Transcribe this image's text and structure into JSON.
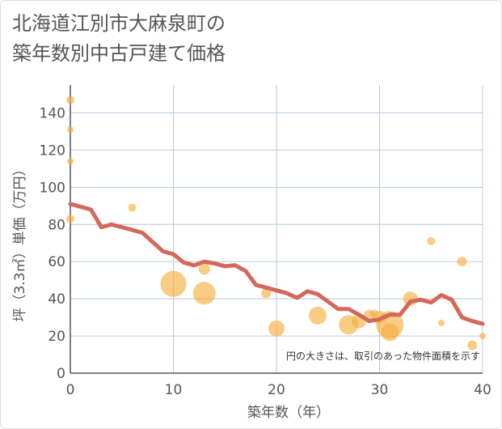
{
  "title_line1": "北海道江別市大麻泉町の",
  "title_line2": "築年数別中古戸建て価格",
  "chart_data": {
    "type": "scatter",
    "title": "北海道江別市大麻泉町の築年数別中古戸建て価格",
    "xlabel": "築年数（年）",
    "ylabel": "坪（3.3㎡）単価（万円）",
    "xlim": [
      0,
      40
    ],
    "ylim": [
      0,
      155
    ],
    "xticks": [
      0,
      10,
      20,
      30,
      40
    ],
    "yticks": [
      0,
      20,
      40,
      60,
      80,
      100,
      120,
      140
    ],
    "grid": true,
    "annotation": "円の大きさは、取引のあった物件面積を示す",
    "colors": {
      "scatter": "#f5b041",
      "line": "#d4685a",
      "grid": "#b8c8da",
      "axis": "#555555"
    },
    "scatter": [
      {
        "x": 0,
        "y": 147,
        "size": 5
      },
      {
        "x": 0,
        "y": 131,
        "size": 4
      },
      {
        "x": 0,
        "y": 114,
        "size": 4
      },
      {
        "x": 0,
        "y": 83,
        "size": 5
      },
      {
        "x": 6,
        "y": 89,
        "size": 5
      },
      {
        "x": 10,
        "y": 48,
        "size": 16
      },
      {
        "x": 13,
        "y": 43,
        "size": 14
      },
      {
        "x": 13,
        "y": 56,
        "size": 7
      },
      {
        "x": 19,
        "y": 43,
        "size": 6
      },
      {
        "x": 20,
        "y": 24,
        "size": 10
      },
      {
        "x": 24,
        "y": 31,
        "size": 11
      },
      {
        "x": 27,
        "y": 26,
        "size": 12
      },
      {
        "x": 28,
        "y": 28,
        "size": 9
      },
      {
        "x": 29,
        "y": 31,
        "size": 7
      },
      {
        "x": 29.5,
        "y": 32,
        "size": 5
      },
      {
        "x": 30,
        "y": 30,
        "size": 8
      },
      {
        "x": 31,
        "y": 26,
        "size": 17
      },
      {
        "x": 31,
        "y": 22,
        "size": 11
      },
      {
        "x": 33,
        "y": 40,
        "size": 9
      },
      {
        "x": 35,
        "y": 71,
        "size": 5
      },
      {
        "x": 36,
        "y": 27,
        "size": 4
      },
      {
        "x": 38,
        "y": 60,
        "size": 6
      },
      {
        "x": 39,
        "y": 15,
        "size": 6
      },
      {
        "x": 40,
        "y": 20,
        "size": 4
      }
    ],
    "line": {
      "x": [
        0,
        1,
        2,
        3,
        4,
        5,
        6,
        7,
        8,
        9,
        10,
        11,
        12,
        13,
        14,
        15,
        16,
        17,
        18,
        19,
        20,
        21,
        22,
        23,
        24,
        25,
        26,
        27,
        28,
        29,
        30,
        31,
        32,
        33,
        34,
        35,
        36,
        37,
        38,
        39,
        40
      ],
      "y": [
        91,
        89.5,
        88,
        78.5,
        80,
        78.5,
        77,
        75.5,
        70.5,
        65.5,
        64,
        59.5,
        58,
        60,
        59,
        57.5,
        58,
        55,
        47.5,
        46,
        44.5,
        43,
        40.5,
        44,
        42.5,
        38.5,
        34.5,
        34.5,
        31.5,
        28,
        29,
        31.5,
        31.5,
        38.5,
        39.5,
        38,
        42,
        39.5,
        30,
        28,
        26.5
      ]
    }
  }
}
